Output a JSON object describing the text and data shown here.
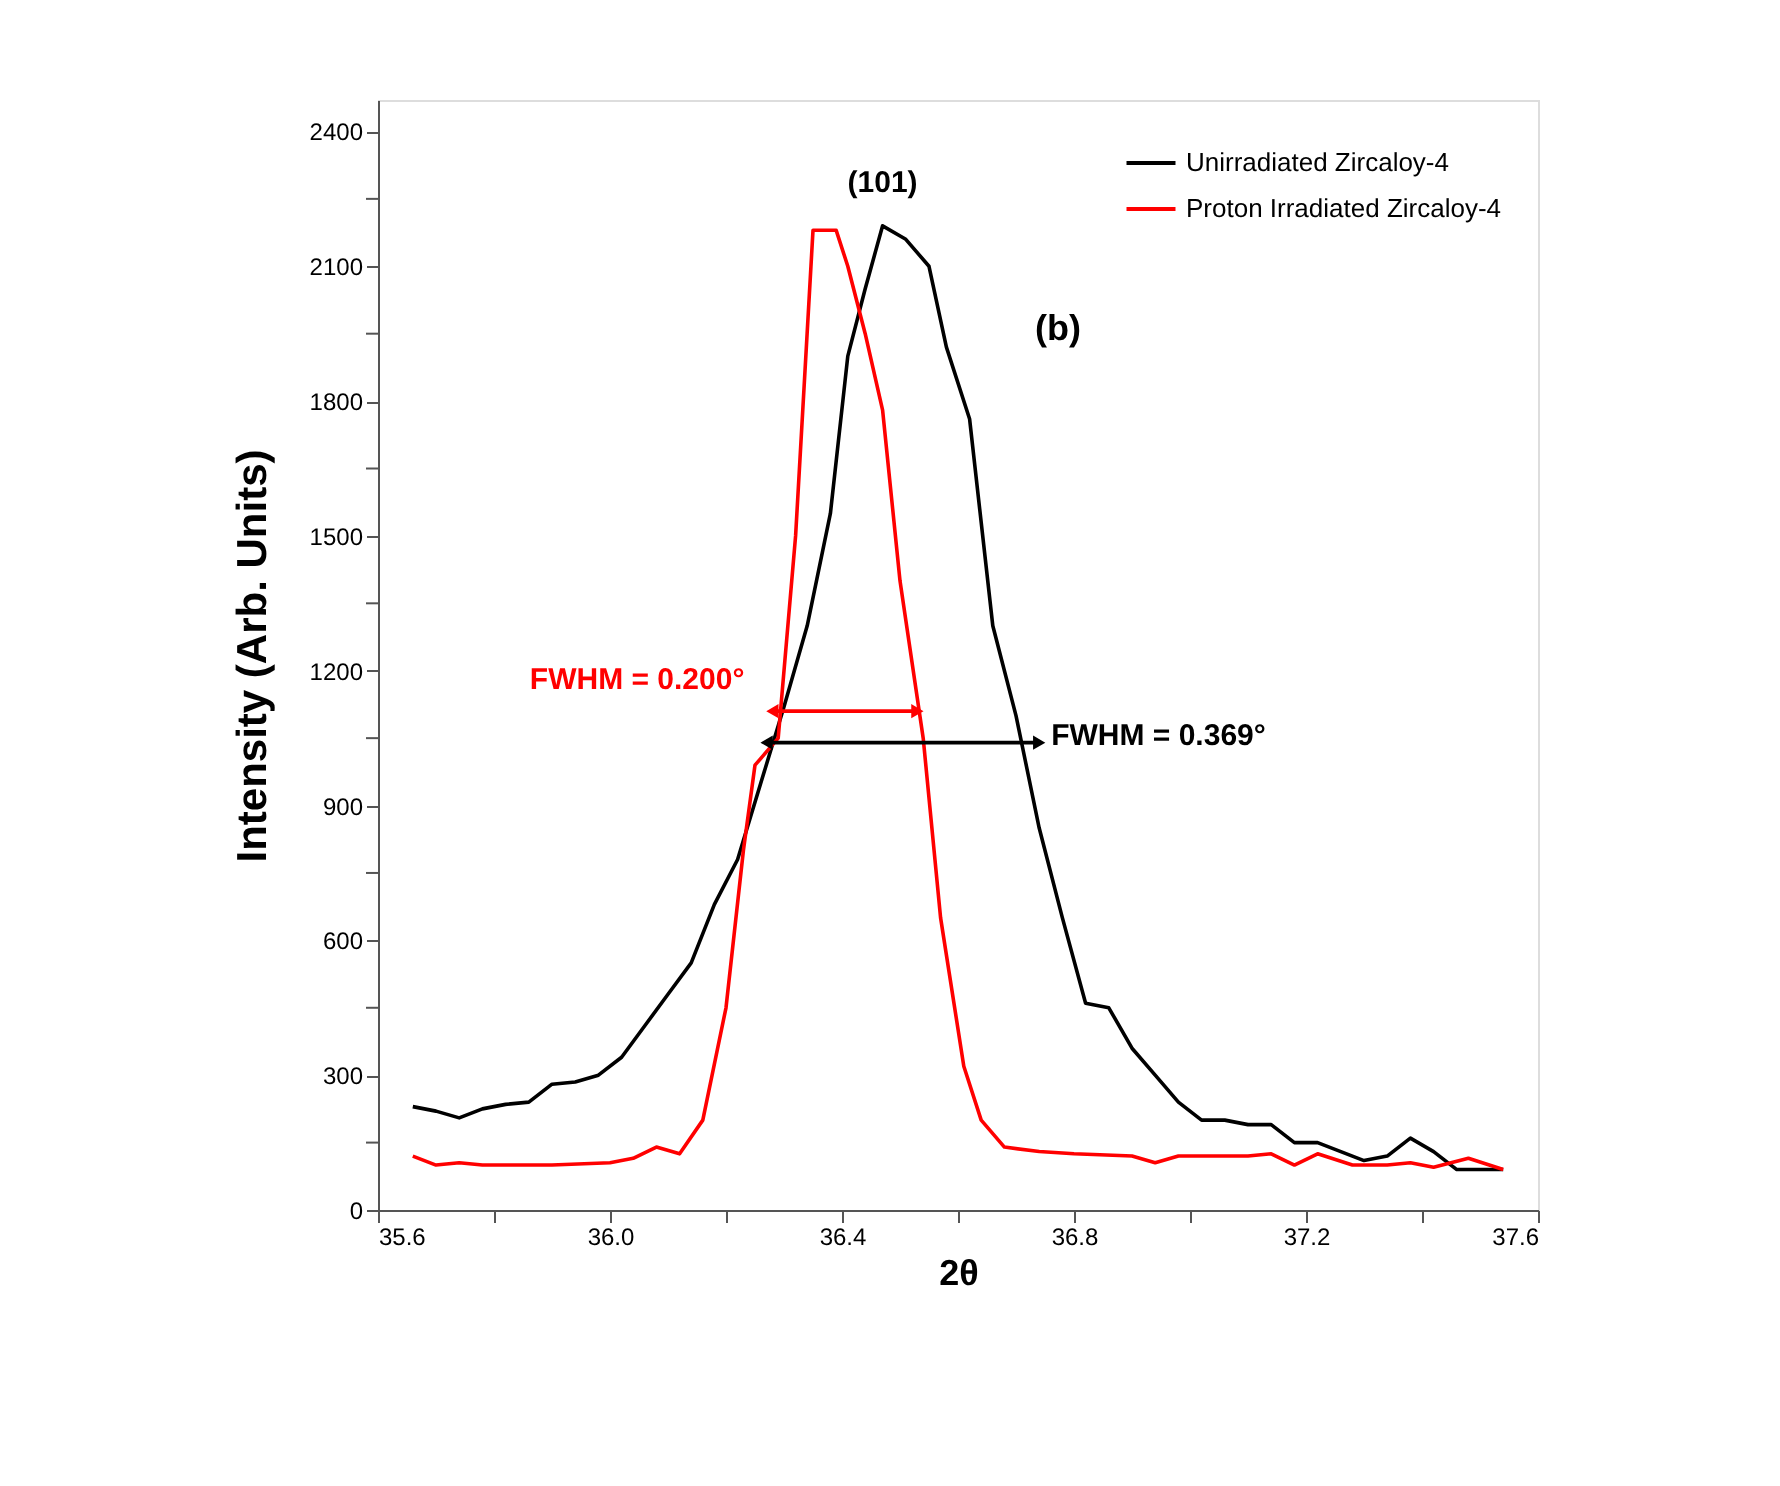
{
  "chart_data": {
    "type": "line",
    "xlabel": "2θ",
    "ylabel": "Intensity (Arb. Units)",
    "xlim": [
      35.6,
      37.6
    ],
    "ylim": [
      0,
      2470
    ],
    "xticks": [
      35.6,
      {
        "value": 35.8,
        "label": null
      },
      {
        "value": 36.0,
        "label": "36.0"
      },
      {
        "value": 36.2,
        "label": null
      },
      36.4,
      {
        "value": 36.6,
        "label": null
      },
      36.8,
      {
        "value": 37.0,
        "label": null
      },
      37.2,
      {
        "value": 37.4,
        "label": null
      },
      37.6
    ],
    "yticks": [
      0,
      {
        "value": 150,
        "label": null
      },
      300,
      {
        "value": 450,
        "label": null
      },
      600,
      {
        "value": 750,
        "label": null
      },
      900,
      {
        "value": 1050,
        "label": null
      },
      1200,
      {
        "value": 1350,
        "label": null
      },
      1500,
      {
        "value": 1650,
        "label": null
      },
      1800,
      {
        "value": 1950,
        "label": null
      },
      2100,
      {
        "value": 2250,
        "label": null
      },
      2400
    ],
    "grid": false,
    "legend": "top right",
    "marker": "none",
    "line_style": "solid",
    "series": [
      {
        "name": "Unirradiated Zircaloy-4",
        "color": "#000000",
        "x": [
          35.66,
          35.7,
          35.74,
          35.78,
          35.82,
          35.86,
          35.9,
          35.94,
          35.98,
          36.02,
          36.06,
          36.1,
          36.14,
          36.18,
          36.22,
          36.26,
          36.3,
          36.34,
          36.38,
          36.41,
          36.44,
          36.47,
          36.51,
          36.55,
          36.58,
          36.62,
          36.66,
          36.7,
          36.74,
          36.78,
          36.82,
          36.86,
          36.9,
          36.94,
          36.98,
          37.02,
          37.06,
          37.1,
          37.14,
          37.18,
          37.22,
          37.26,
          37.3,
          37.34,
          37.38,
          37.42,
          37.46,
          37.5,
          37.54
        ],
        "values": [
          230,
          220,
          205,
          225,
          235,
          240,
          280,
          285,
          300,
          340,
          410,
          480,
          550,
          680,
          780,
          950,
          1120,
          1300,
          1550,
          1900,
          2050,
          2190,
          2160,
          2100,
          1920,
          1760,
          1300,
          1100,
          850,
          650,
          460,
          450,
          360,
          300,
          240,
          200,
          200,
          190,
          190,
          150,
          150,
          130,
          110,
          120,
          160,
          130,
          90,
          90,
          90
        ]
      },
      {
        "name": "Proton Irradiated Zircaloy-4",
        "color": "#ff0000",
        "x": [
          35.66,
          35.7,
          35.74,
          35.78,
          35.9,
          36.0,
          36.04,
          36.08,
          36.12,
          36.16,
          36.2,
          36.23,
          36.25,
          36.29,
          36.32,
          36.35,
          36.39,
          36.41,
          36.44,
          36.47,
          36.5,
          36.54,
          36.57,
          36.61,
          36.64,
          36.68,
          36.74,
          36.8,
          36.9,
          36.94,
          36.98,
          37.1,
          37.14,
          37.18,
          37.22,
          37.28,
          37.34,
          37.38,
          37.42,
          37.48,
          37.54
        ],
        "values": [
          120,
          100,
          105,
          100,
          100,
          105,
          115,
          140,
          125,
          200,
          450,
          800,
          990,
          1050,
          1500,
          2180,
          2180,
          2100,
          1950,
          1780,
          1400,
          1050,
          650,
          320,
          200,
          140,
          130,
          125,
          120,
          105,
          120,
          120,
          125,
          100,
          125,
          100,
          100,
          105,
          95,
          115,
          90
        ]
      },
      {
        "type": "line",
        "color": "#ff0000",
        "marker": "triangle",
        "x": [
          36.28,
          36.53
        ],
        "values": [
          1110,
          1110
        ]
      },
      {
        "type": "line",
        "color": "#000000",
        "marker": "triangle",
        "x": [
          36.27,
          36.74
        ],
        "values": [
          1040,
          1040
        ]
      }
    ],
    "annotations": [
      {
        "text": "(101)",
        "x": 36.47,
        "y": 2190
      },
      "(b)",
      {
        "text": "FWHM = 0.200°",
        "x": 36.28,
        "y": 1110
      },
      {
        "text": "FWHM = 0.369°",
        "x": 36.74,
        "y": 1040
      }
    ]
  }
}
